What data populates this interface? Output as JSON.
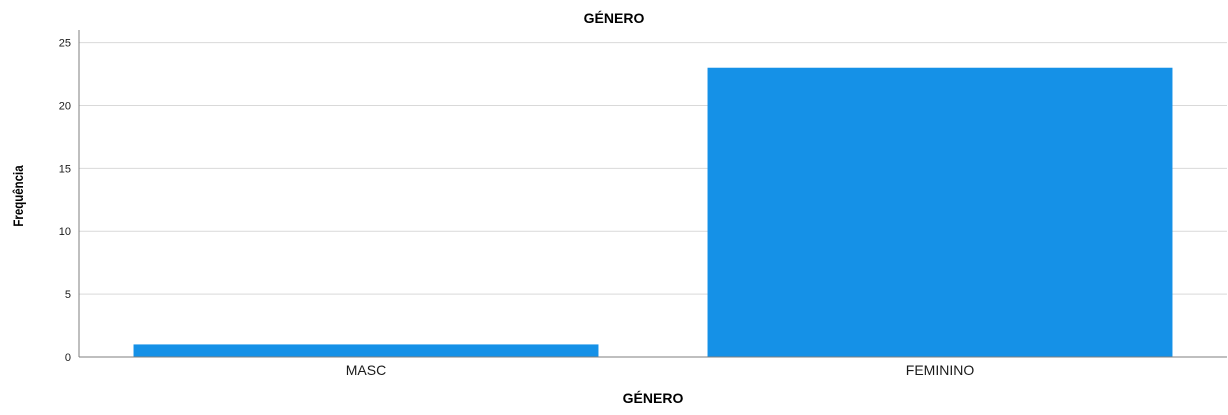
{
  "chart_data": {
    "type": "bar",
    "title": "GÉNERO",
    "xlabel": "GÉNERO",
    "ylabel": "Frequência",
    "categories": [
      "MASC",
      "FEMININO"
    ],
    "values": [
      1,
      23
    ],
    "ylim": [
      0,
      26
    ],
    "yticks": [
      0,
      5,
      10,
      15,
      20,
      25
    ],
    "grid": true,
    "legend": "none",
    "colors": {
      "bar": "#1591e7",
      "grid": "#d9d9d9",
      "axis": "#7f7f7f",
      "text": "#000000",
      "tick_text": "#1a1a1a"
    }
  }
}
